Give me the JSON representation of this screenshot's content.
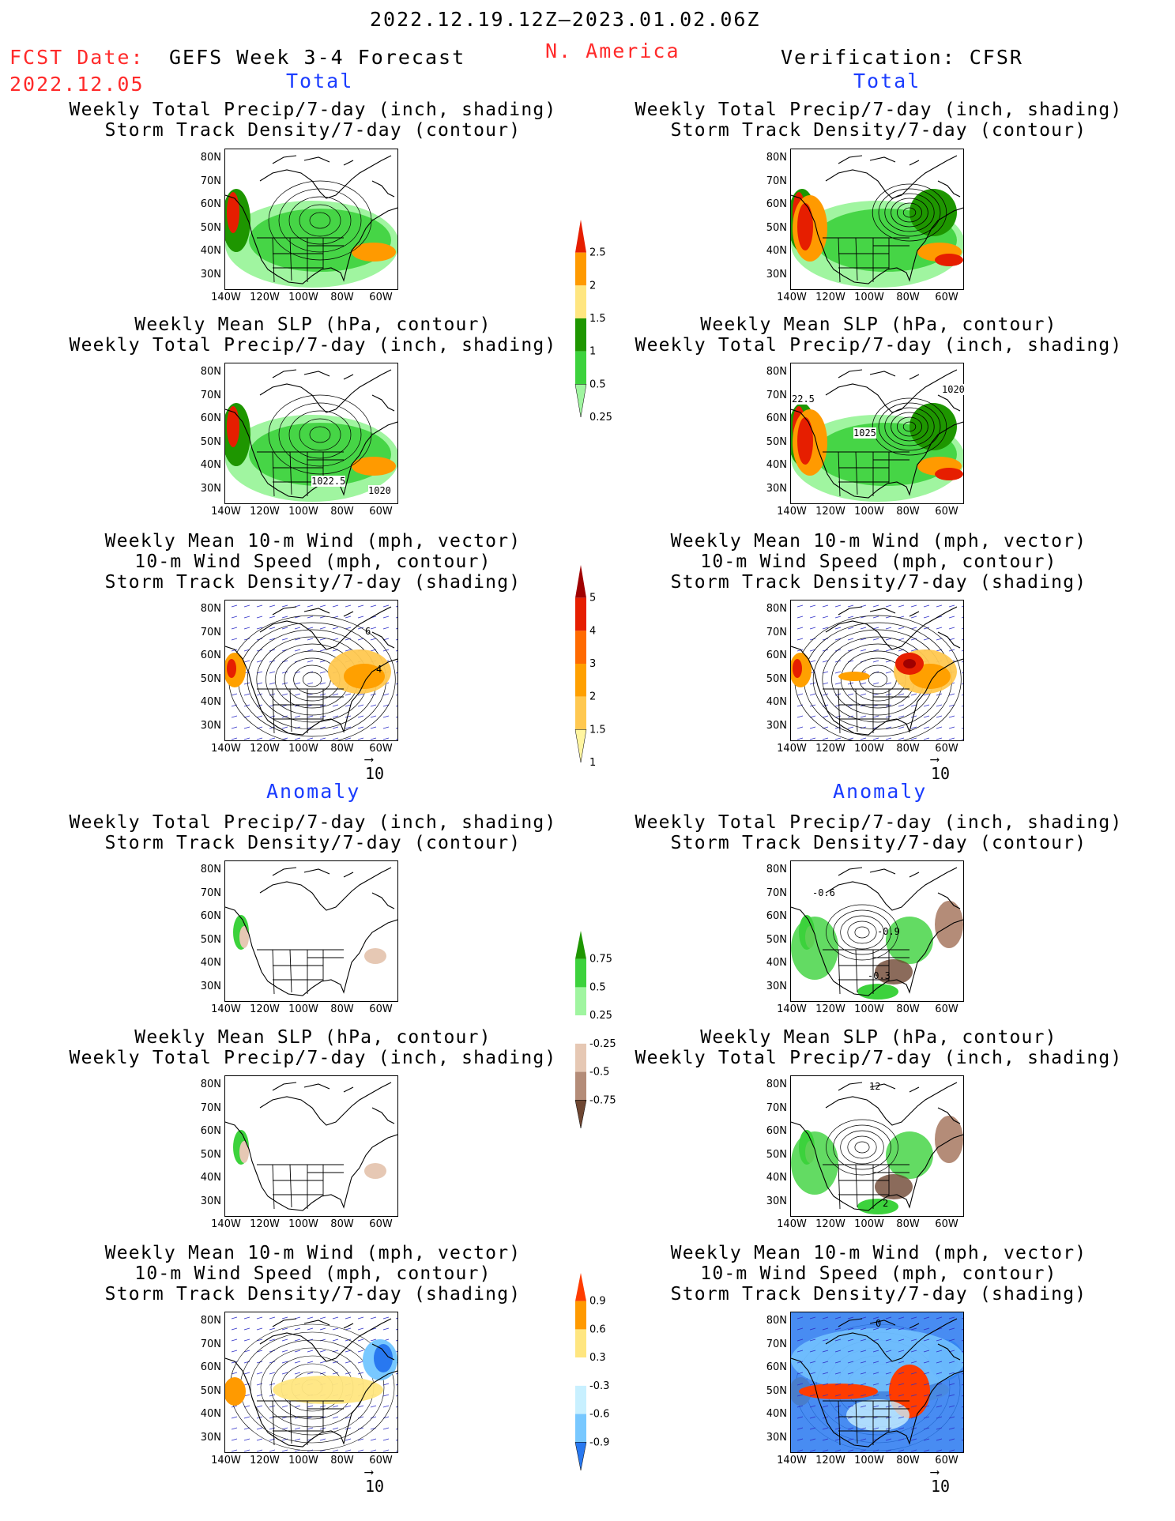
{
  "header": {
    "date_range": "2022.12.19.12Z–2023.01.02.06Z",
    "fcst_label": "FCST Date:",
    "fcst_date": "2022.12.05",
    "forecast_title": "GEFS Week 3-4 Forecast",
    "region": "N. America",
    "verification": "Verification: CFSR"
  },
  "sections": {
    "total": "Total",
    "anomaly": "Anomaly"
  },
  "panel_titles": {
    "precip_storm": [
      "Weekly Total Precip/7-day (inch, shading)",
      "Storm Track Density/7-day (contour)"
    ],
    "slp_precip": [
      "Weekly Mean SLP (hPa, contour)",
      "Weekly Total Precip/7-day (inch, shading)"
    ],
    "wind_storm": [
      "Weekly Mean 10-m Wind (mph, vector)",
      "10-m Wind Speed (mph, contour)",
      "Storm Track Density/7-day (shading)"
    ]
  },
  "axes": {
    "lat_ticks": [
      "80N",
      "70N",
      "60N",
      "50N",
      "40N",
      "30N"
    ],
    "lon_ticks": [
      "140W",
      "120W",
      "100W",
      "80W",
      "60W"
    ]
  },
  "vector_ref": "10",
  "map_labels": {
    "fc_slp_1": "1022.5",
    "fc_slp_2": "1020",
    "fc_wind_1": "4",
    "fc_wind_2": "6",
    "ob_slp_1": "1025",
    "ob_slp_2": "1020",
    "ob_slp_3": "22.5",
    "ob_anom_1": "-0.6",
    "ob_anom_2": "-0.9",
    "ob_anom_3": "-0.3",
    "ob_slpanom_1": "12",
    "ob_slpanom_2": "2",
    "ob_wind_1": "0"
  },
  "colorbars": {
    "precip_total": {
      "labels": [
        "2.5",
        "2",
        "1.5",
        "1",
        "0.5",
        "0.25"
      ],
      "colors": [
        "#e61e00",
        "#ff9a00",
        "#ffe680",
        "#1e9600",
        "#3cd23c",
        "#a0f5a0"
      ]
    },
    "storm_total": {
      "labels": [
        "5",
        "4",
        "3",
        "2",
        "1.5",
        "1"
      ],
      "colors": [
        "#a00000",
        "#e61e00",
        "#ff6a00",
        "#ffa000",
        "#ffc850",
        "#fff5a0"
      ]
    },
    "precip_anom": {
      "labels": [
        "0.75",
        "0.5",
        "0.25",
        "-0.25",
        "-0.5",
        "-0.75"
      ],
      "colors": [
        "#1e9600",
        "#3cd23c",
        "#a0f5a0",
        "#ffffff",
        "#e6c8b4",
        "#b48c78",
        "#6e4632"
      ]
    },
    "storm_anom": {
      "labels": [
        "0.9",
        "0.6",
        "0.3",
        "-0.3",
        "-0.6",
        "-0.9"
      ],
      "colors": [
        "#ff3c00",
        "#ff9a00",
        "#ffe680",
        "#ffffff",
        "#c8f0ff",
        "#78c8ff",
        "#2878f0"
      ]
    }
  }
}
